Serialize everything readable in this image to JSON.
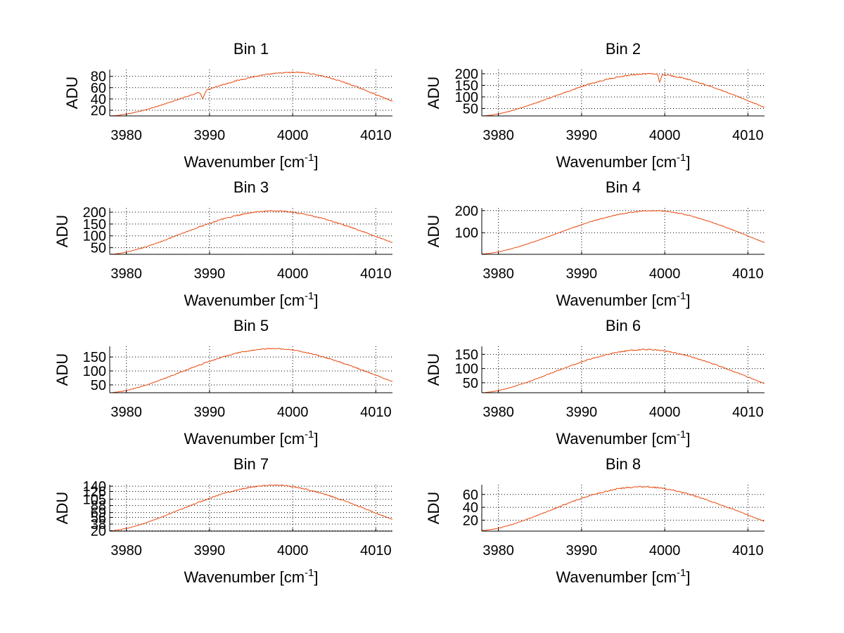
{
  "figure": {
    "line_color": "#e8490f",
    "axis_color": "#000000",
    "grid_color": "#000000"
  },
  "chart_data": [
    {
      "type": "line",
      "title": "Bin 1",
      "xlabel": "Wavenumber [cm",
      "xlabel_sup": "-1",
      "xlabel_close": "]",
      "ylabel": "ADU",
      "xlim": [
        3978,
        4012
      ],
      "ylim": [
        10,
        92
      ],
      "xticks": [
        3980,
        3990,
        4000,
        4010
      ],
      "xtick_labels": [
        "3980",
        "3990",
        "4000",
        "4010"
      ],
      "yticks": [
        20,
        40,
        60,
        80
      ],
      "ytick_labels": [
        "20",
        "40",
        "60",
        "80"
      ],
      "grid": true,
      "curve": {
        "x_start": 3978,
        "x_end": 4012,
        "peak_x": 4000.5,
        "peak_y": 87,
        "left_y": 10,
        "right_y": 36,
        "noise": 1.0,
        "dips": [
          {
            "x": 3989.2,
            "depth": 12,
            "width": 0.18
          }
        ]
      }
    },
    {
      "type": "line",
      "title": "Bin 2",
      "xlabel": "Wavenumber [cm",
      "xlabel_sup": "-1",
      "xlabel_close": "]",
      "ylabel": "ADU",
      "xlim": [
        3978,
        4012
      ],
      "ylim": [
        18,
        218
      ],
      "xticks": [
        3980,
        3990,
        4000,
        4010
      ],
      "xtick_labels": [
        "3980",
        "3990",
        "4000",
        "4010"
      ],
      "yticks": [
        50,
        100,
        150,
        200
      ],
      "ytick_labels": [
        "50",
        "100",
        "150",
        "200"
      ],
      "grid": true,
      "curve": {
        "x_start": 3978,
        "x_end": 4012,
        "peak_x": 3998.5,
        "peak_y": 200,
        "left_y": 18,
        "right_y": 55,
        "noise": 2.5,
        "dips": [
          {
            "x": 3999.4,
            "depth": 35,
            "width": 0.12
          }
        ]
      }
    },
    {
      "type": "line",
      "title": "Bin 3",
      "xlabel": "Wavenumber [cm",
      "xlabel_sup": "-1",
      "xlabel_close": "]",
      "ylabel": "ADU",
      "xlim": [
        3978,
        4012
      ],
      "ylim": [
        22,
        218
      ],
      "xticks": [
        3980,
        3990,
        4000,
        4010
      ],
      "xtick_labels": [
        "3980",
        "3990",
        "4000",
        "4010"
      ],
      "yticks": [
        50,
        100,
        150,
        200
      ],
      "ytick_labels": [
        "50",
        "100",
        "150",
        "200"
      ],
      "grid": true,
      "curve": {
        "x_start": 3978,
        "x_end": 4012,
        "peak_x": 3998,
        "peak_y": 206,
        "left_y": 22,
        "right_y": 72,
        "noise": 2.5,
        "dips": []
      }
    },
    {
      "type": "line",
      "title": "Bin 4",
      "xlabel": "Wavenumber [cm",
      "xlabel_sup": "-1",
      "xlabel_close": "]",
      "ylabel": "ADU",
      "xlim": [
        3978,
        4012
      ],
      "ylim": [
        2,
        212
      ],
      "xticks": [
        3980,
        3990,
        4000,
        4010
      ],
      "xtick_labels": [
        "3980",
        "3990",
        "4000",
        "4010"
      ],
      "yticks": [
        100,
        200
      ],
      "ytick_labels": [
        "100",
        "200"
      ],
      "grid": true,
      "curve": {
        "x_start": 3978,
        "x_end": 4012,
        "peak_x": 3999,
        "peak_y": 200,
        "left_y": 4,
        "right_y": 55,
        "noise": 2.0,
        "dips": []
      }
    },
    {
      "type": "line",
      "title": "Bin 5",
      "xlabel": "Wavenumber [cm",
      "xlabel_sup": "-1",
      "xlabel_close": "]",
      "ylabel": "ADU",
      "xlim": [
        3978,
        4012
      ],
      "ylim": [
        22,
        188
      ],
      "xticks": [
        3980,
        3990,
        4000,
        4010
      ],
      "xtick_labels": [
        "3980",
        "3990",
        "4000",
        "4010"
      ],
      "yticks": [
        50,
        100,
        150
      ],
      "ytick_labels": [
        "50",
        "100",
        "150"
      ],
      "grid": true,
      "curve": {
        "x_start": 3978,
        "x_end": 4012,
        "peak_x": 3998,
        "peak_y": 180,
        "left_y": 22,
        "right_y": 62,
        "noise": 2.2,
        "dips": []
      }
    },
    {
      "type": "line",
      "title": "Bin 6",
      "xlabel": "Wavenumber [cm",
      "xlabel_sup": "-1",
      "xlabel_close": "]",
      "ylabel": "ADU",
      "xlim": [
        3978,
        4012
      ],
      "ylim": [
        15,
        178
      ],
      "xticks": [
        3980,
        3990,
        4000,
        4010
      ],
      "xtick_labels": [
        "3980",
        "3990",
        "4000",
        "4010"
      ],
      "yticks": [
        50,
        100,
        150
      ],
      "ytick_labels": [
        "50",
        "100",
        "150"
      ],
      "grid": true,
      "curve": {
        "x_start": 3978,
        "x_end": 4012,
        "peak_x": 3998,
        "peak_y": 167,
        "left_y": 15,
        "right_y": 47,
        "noise": 2.0,
        "dips": []
      }
    },
    {
      "type": "line",
      "title": "Bin 7",
      "xlabel": "Wavenumber [cm",
      "xlabel_sup": "-1",
      "xlabel_close": "]",
      "ylabel": "ADU",
      "xlim": [
        3978,
        4012
      ],
      "ylim": [
        19,
        144
      ],
      "xticks": [
        3980,
        3990,
        4000,
        4010
      ],
      "xtick_labels": [
        "3980",
        "3990",
        "4000",
        "4010"
      ],
      "yticks": [
        20,
        38,
        56,
        69,
        88,
        105,
        126,
        140
      ],
      "ytick_labels": [
        "20",
        "38",
        "56",
        "69",
        "88",
        "105",
        "126",
        "140"
      ],
      "grid": true,
      "curve": {
        "x_start": 3978,
        "x_end": 4012,
        "peak_x": 3998,
        "peak_y": 143,
        "left_y": 20,
        "right_y": 50,
        "noise": 1.6,
        "dips": []
      }
    },
    {
      "type": "line",
      "title": "Bin 8",
      "xlabel": "Wavenumber [cm",
      "xlabel_sup": "-1",
      "xlabel_close": "]",
      "ylabel": "ADU",
      "xlim": [
        3978,
        4012
      ],
      "ylim": [
        3,
        75
      ],
      "xticks": [
        3980,
        3990,
        4000,
        4010
      ],
      "xtick_labels": [
        "3980",
        "3990",
        "4000",
        "4010"
      ],
      "yticks": [
        20,
        40,
        60
      ],
      "ytick_labels": [
        "20",
        "40",
        "60"
      ],
      "grid": true,
      "curve": {
        "x_start": 3978,
        "x_end": 4012,
        "peak_x": 3997.5,
        "peak_y": 72,
        "left_y": 4,
        "right_y": 18,
        "noise": 1.0,
        "dips": []
      }
    }
  ]
}
